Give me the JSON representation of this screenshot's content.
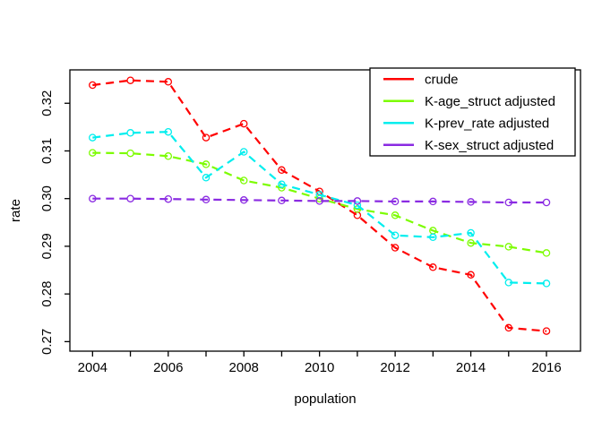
{
  "figure": {
    "background": "#ffffff",
    "border_color": "#000000",
    "text_color": "#000000"
  },
  "chart_data": {
    "type": "line",
    "title": "",
    "xlabel": "population",
    "ylabel": "rate",
    "line_style": "dashed",
    "marker": "open-circle",
    "grid": false,
    "legend_position": "top-right",
    "xlim": [
      2003.4,
      2016.9
    ],
    "ylim": [
      0.268,
      0.327
    ],
    "x_ticks": [
      2004,
      2005,
      2006,
      2007,
      2008,
      2009,
      2010,
      2011,
      2012,
      2013,
      2014,
      2015,
      2016
    ],
    "x_label_ticks": [
      2004,
      2006,
      2008,
      2010,
      2012,
      2014,
      2016
    ],
    "y_ticks": [
      0.27,
      0.28,
      0.29,
      0.3,
      0.31,
      0.32
    ],
    "y_tick_labels": [
      "0.27",
      "0.28",
      "0.29",
      "0.30",
      "0.31",
      "0.32"
    ],
    "x": [
      2004,
      2005,
      2006,
      2007,
      2008,
      2009,
      2010,
      2011,
      2012,
      2013,
      2014,
      2015,
      2016
    ],
    "series": [
      {
        "name": "crude",
        "color": "#FF0000",
        "values": [
          0.3238,
          0.3248,
          0.3245,
          0.3128,
          0.3157,
          0.306,
          0.3015,
          0.2965,
          0.2897,
          0.2856,
          0.284,
          0.2729,
          0.2722
        ]
      },
      {
        "name": "K-age_struct adjusted",
        "color": "#7CFC00",
        "values": [
          0.3096,
          0.3095,
          0.3089,
          0.3072,
          0.3038,
          0.3023,
          0.3,
          0.2978,
          0.2965,
          0.2933,
          0.2907,
          0.2899,
          0.2886
        ]
      },
      {
        "name": "K-prev_rate adjusted",
        "color": "#00EEEE",
        "values": [
          0.3128,
          0.3138,
          0.314,
          0.3044,
          0.3098,
          0.303,
          0.3008,
          0.2986,
          0.2923,
          0.2919,
          0.2928,
          0.2824,
          0.2822
        ]
      },
      {
        "name": "K-sex_struct adjusted",
        "color": "#8A2BE2",
        "values": [
          0.3,
          0.3,
          0.2999,
          0.2998,
          0.2997,
          0.2996,
          0.2995,
          0.2995,
          0.2994,
          0.2994,
          0.2993,
          0.2992,
          0.2992
        ]
      }
    ]
  }
}
